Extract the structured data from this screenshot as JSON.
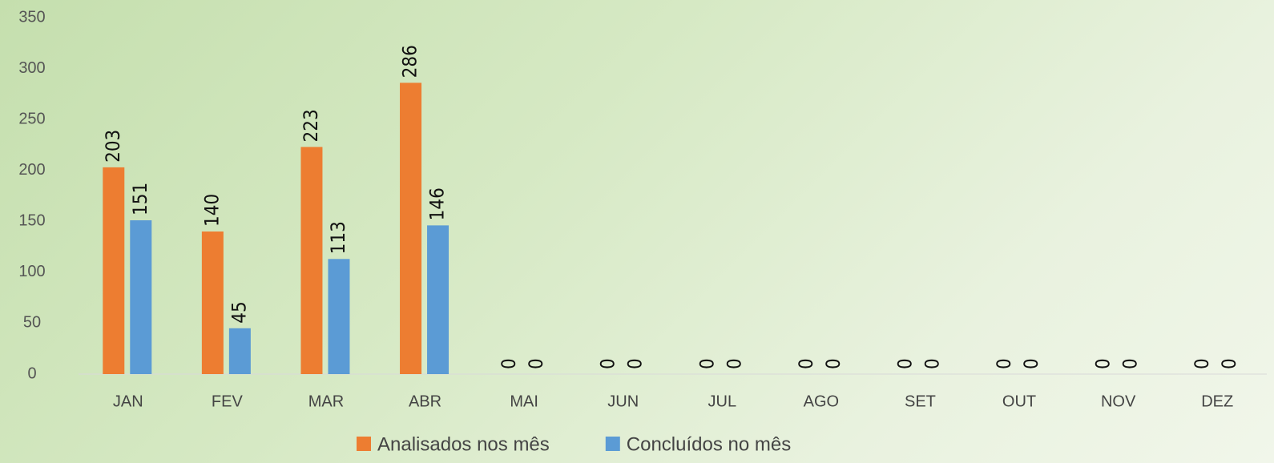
{
  "chart_data": {
    "type": "bar",
    "categories": [
      "JAN",
      "FEV",
      "MAR",
      "ABR",
      "MAI",
      "JUN",
      "JUL",
      "AGO",
      "SET",
      "OUT",
      "NOV",
      "DEZ"
    ],
    "series": [
      {
        "name": "Analisados nos mês",
        "color": "#ed7d31",
        "values": [
          203,
          140,
          223,
          286,
          0,
          0,
          0,
          0,
          0,
          0,
          0,
          0
        ]
      },
      {
        "name": "Concluídos no mês",
        "color": "#5b9bd5",
        "values": [
          151,
          45,
          113,
          146,
          0,
          0,
          0,
          0,
          0,
          0,
          0,
          0
        ]
      }
    ],
    "ylim": [
      0,
      350
    ],
    "yticks": [
      0,
      50,
      100,
      150,
      200,
      250,
      300,
      350
    ],
    "grid": false,
    "legend": "bottom"
  }
}
